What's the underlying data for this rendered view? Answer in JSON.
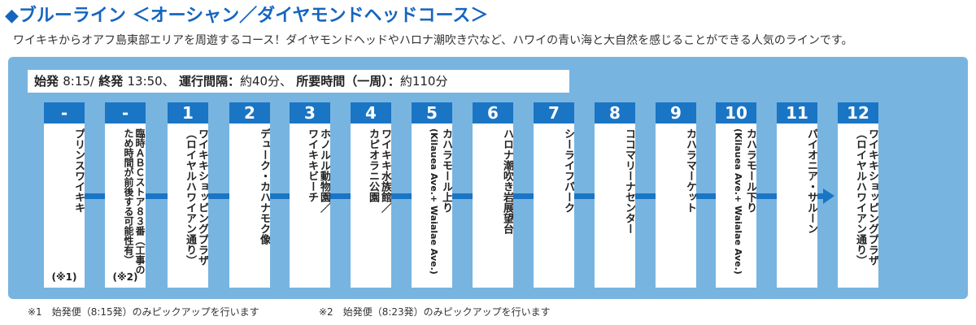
{
  "header": {
    "title": "◆ブルーライン ＜オーシャン／ダイヤモンドヘッドコース＞",
    "description": "ワイキキからオアフ島東部エリアを周遊するコース！ダイヤモンドヘッドやハロナ潮吹き穴など、ハワイの青い海と大自然を感じることができる人気のラインです。"
  },
  "schedule": {
    "first_label": "始発",
    "first_time": "8:15/",
    "last_label": "終発",
    "last_time": "13:50、",
    "interval_label": "運行間隔：",
    "interval_value": "約40分、",
    "duration_label": "所要時間（一周）：",
    "duration_value": "約110分"
  },
  "stops": [
    {
      "num": "-",
      "name": "プリンスワイキキ",
      "sub": "",
      "note": "(※1)"
    },
    {
      "num": "-",
      "name": "臨時ＡＢＣストア８３番（工事の",
      "sub": "ため時間が前後する可能性有）",
      "note": "(※2)"
    },
    {
      "num": "1",
      "name": "ワイキキショッピングプラザ",
      "sub": "（ロイヤルハワイアン通り）",
      "note": ""
    },
    {
      "num": "2",
      "name": "デューク・カハナモク像",
      "sub": "",
      "note": ""
    },
    {
      "num": "3",
      "name": "ホノルル動物園／",
      "sub": "ワイキキビーチ",
      "note": ""
    },
    {
      "num": "4",
      "name": "ワイキキ水族館／",
      "sub": "カピオラニ公園",
      "note": ""
    },
    {
      "num": "5",
      "name": "カハラモール上り",
      "sub": "(Kilauea Ave.+ Waialae Ave.)",
      "note": ""
    },
    {
      "num": "6",
      "name": "ハロナ潮吹き岩展望台",
      "sub": "",
      "note": ""
    },
    {
      "num": "7",
      "name": "シーライフパーク",
      "sub": "",
      "note": ""
    },
    {
      "num": "8",
      "name": "ココマリーナセンター",
      "sub": "",
      "note": ""
    },
    {
      "num": "9",
      "name": "カハラマーケット",
      "sub": "",
      "note": ""
    },
    {
      "num": "10",
      "name": "カハラモール下り",
      "sub": "(Kilauea Ave.+ Waialae Ave.)",
      "note": ""
    },
    {
      "num": "11",
      "name": "パイオニア・サルーン",
      "sub": "",
      "note": ""
    },
    {
      "num": "12",
      "name": "ワイキキショッピングプラザ",
      "sub": "（ロイヤルハワイアン通り）",
      "note": ""
    }
  ],
  "footnotes": [
    "※1　始発便（8:15発）のみピックアップを行います",
    "※2　始発便（8:23発）のみピックアップを行います"
  ],
  "colors": {
    "title": "#1565c0",
    "panel": "#78b4e0",
    "route": "#1a75c4"
  }
}
